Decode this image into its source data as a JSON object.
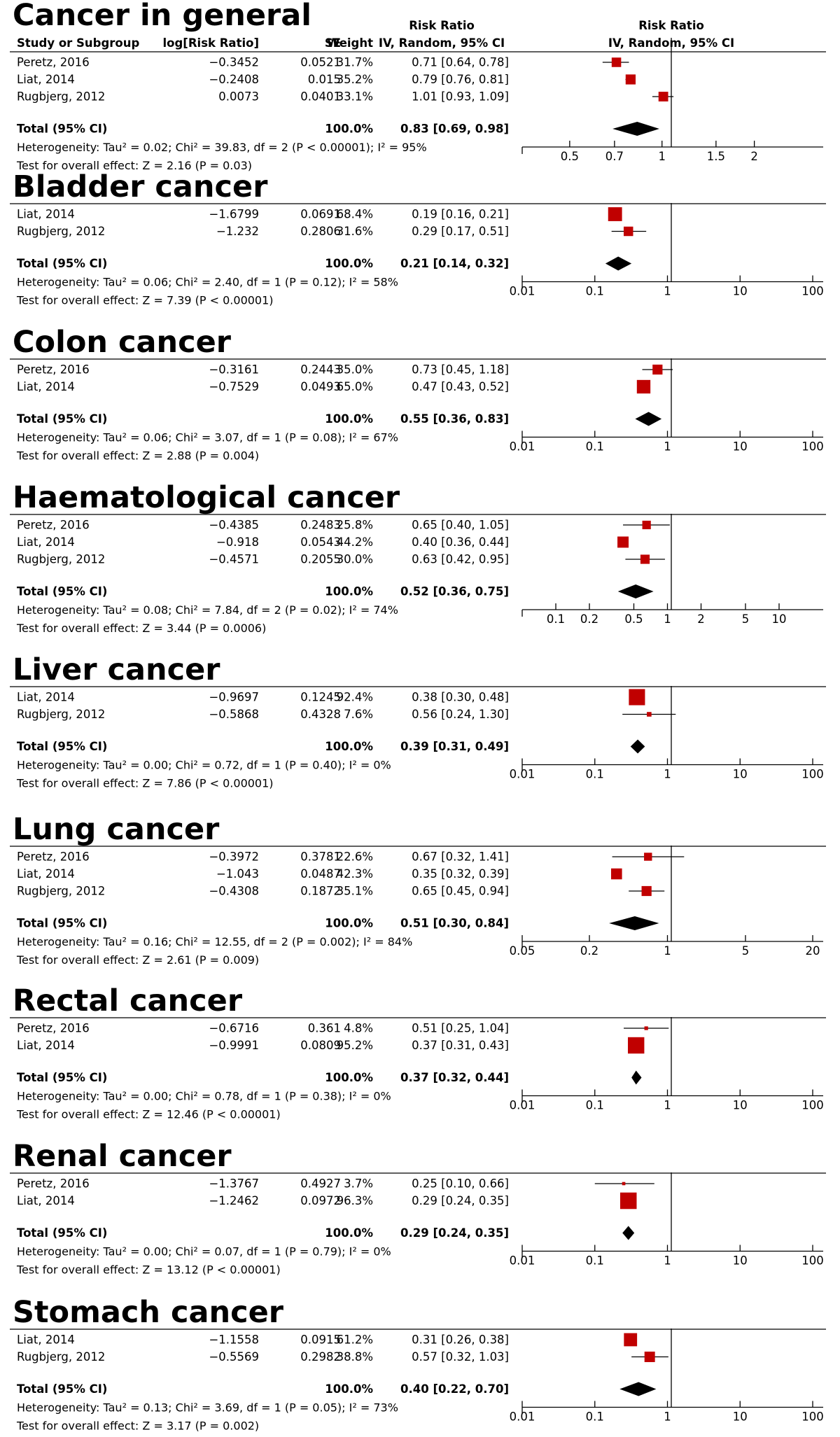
{
  "header": {
    "group1": "Risk Ratio",
    "group2": "Risk Ratio",
    "columns": [
      "Study or Subgroup",
      "log[Risk Ratio]",
      "SE",
      "Weight",
      "IV, Random, 95% CI",
      "IV, Random, 95% CI"
    ]
  },
  "colors": {
    "study_marker": "#c00000",
    "summary_diamond": "#000000",
    "axis": "#000000"
  },
  "chart_data": [
    {
      "type": "forest",
      "title": "Cancer in general",
      "scale": "log",
      "studies": [
        {
          "name": "Peretz, 2016",
          "log_rr": "−0.3452",
          "se": "0.0521",
          "weight": "31.7%",
          "ci_text": "0.71 [0.64, 0.78]",
          "rr": 0.71,
          "lo": 0.64,
          "hi": 0.78,
          "w": 31.7
        },
        {
          "name": "Liat, 2014",
          "log_rr": "−0.2408",
          "se": "0.015",
          "weight": "35.2%",
          "ci_text": "0.79 [0.76, 0.81]",
          "rr": 0.79,
          "lo": 0.76,
          "hi": 0.81,
          "w": 35.2
        },
        {
          "name": "Rugbjerg, 2012",
          "log_rr": "0.0073",
          "se": "0.0401",
          "weight": "33.1%",
          "ci_text": "1.01 [0.93, 1.09]",
          "rr": 1.01,
          "lo": 0.93,
          "hi": 1.09,
          "w": 33.1
        }
      ],
      "total": {
        "label": "Total (95% CI)",
        "weight": "100.0%",
        "ci_text": "0.83 [0.69, 0.98]",
        "rr": 0.83,
        "lo": 0.69,
        "hi": 0.98
      },
      "heterogeneity": "Heterogeneity: Tau² = 0.02; Chi² = 39.83, df = 2 (P < 0.00001); I² = 95%",
      "overall_effect": "Test for overall effect: Z = 2.16 (P = 0.03)",
      "xlim": [
        0.35,
        3.1
      ],
      "ticks": [
        0.5,
        0.7,
        1,
        1.5,
        2
      ],
      "tick_labels": [
        "0.5",
        "0.7",
        "1",
        "1.5",
        "2"
      ]
    },
    {
      "type": "forest",
      "title": "Bladder cancer",
      "scale": "log",
      "studies": [
        {
          "name": "Liat, 2014",
          "log_rr": "−1.6799",
          "se": "0.0691",
          "weight": "68.4%",
          "ci_text": "0.19 [0.16, 0.21]",
          "rr": 0.19,
          "lo": 0.16,
          "hi": 0.21,
          "w": 68.4
        },
        {
          "name": "Rugbjerg, 2012",
          "log_rr": "−1.232",
          "se": "0.2806",
          "weight": "31.6%",
          "ci_text": "0.29 [0.17, 0.51]",
          "rr": 0.29,
          "lo": 0.17,
          "hi": 0.51,
          "w": 31.6
        }
      ],
      "total": {
        "label": "Total (95% CI)",
        "weight": "100.0%",
        "ci_text": "0.21 [0.14, 0.32]",
        "rr": 0.21,
        "lo": 0.14,
        "hi": 0.32
      },
      "heterogeneity": "Heterogeneity: Tau² = 0.06; Chi² = 2.40, df = 1 (P = 0.12); I² = 58%",
      "overall_effect": "Test for overall effect: Z = 7.39 (P < 0.00001)",
      "xlim": [
        0.01,
        100
      ],
      "ticks": [
        0.01,
        0.1,
        1,
        10,
        100
      ],
      "tick_labels": [
        "0.01",
        "0.1",
        "1",
        "10",
        "100"
      ]
    },
    {
      "type": "forest",
      "title": "Colon cancer",
      "scale": "log",
      "studies": [
        {
          "name": "Peretz, 2016",
          "log_rr": "−0.3161",
          "se": "0.2443",
          "weight": "35.0%",
          "ci_text": "0.73 [0.45, 1.18]",
          "rr": 0.73,
          "lo": 0.45,
          "hi": 1.18,
          "w": 35.0
        },
        {
          "name": "Liat, 2014",
          "log_rr": "−0.7529",
          "se": "0.0493",
          "weight": "65.0%",
          "ci_text": "0.47 [0.43, 0.52]",
          "rr": 0.47,
          "lo": 0.43,
          "hi": 0.52,
          "w": 65.0
        }
      ],
      "total": {
        "label": "Total (95% CI)",
        "weight": "100.0%",
        "ci_text": "0.55 [0.36, 0.83]",
        "rr": 0.55,
        "lo": 0.36,
        "hi": 0.83
      },
      "heterogeneity": "Heterogeneity: Tau² = 0.06; Chi² = 3.07, df = 1 (P = 0.08); I² = 67%",
      "overall_effect": "Test for overall effect: Z = 2.88 (P = 0.004)",
      "xlim": [
        0.01,
        100
      ],
      "ticks": [
        0.01,
        0.1,
        1,
        10,
        100
      ],
      "tick_labels": [
        "0.01",
        "0.1",
        "1",
        "10",
        "100"
      ]
    },
    {
      "type": "forest",
      "title": "Haematological cancer",
      "scale": "log",
      "studies": [
        {
          "name": "Peretz, 2016",
          "log_rr": "−0.4385",
          "se": "0.2483",
          "weight": "25.8%",
          "ci_text": "0.65 [0.40, 1.05]",
          "rr": 0.65,
          "lo": 0.4,
          "hi": 1.05,
          "w": 25.8
        },
        {
          "name": "Liat, 2014",
          "log_rr": "−0.918",
          "se": "0.0543",
          "weight": "44.2%",
          "ci_text": "0.40 [0.36, 0.44]",
          "rr": 0.4,
          "lo": 0.36,
          "hi": 0.44,
          "w": 44.2
        },
        {
          "name": "Rugbjerg, 2012",
          "log_rr": "−0.4571",
          "se": "0.2055",
          "weight": "30.0%",
          "ci_text": "0.63 [0.42, 0.95]",
          "rr": 0.63,
          "lo": 0.42,
          "hi": 0.95,
          "w": 30.0
        }
      ],
      "total": {
        "label": "Total (95% CI)",
        "weight": "100.0%",
        "ci_text": "0.52 [0.36, 0.75]",
        "rr": 0.52,
        "lo": 0.36,
        "hi": 0.75
      },
      "heterogeneity": "Heterogeneity: Tau² = 0.08; Chi² = 7.84, df = 2 (P = 0.02); I² = 74%",
      "overall_effect": "Test for overall effect: Z = 3.44 (P = 0.0006)",
      "xlim": [
        0.05,
        20
      ],
      "ticks": [
        0.1,
        0.2,
        0.5,
        1,
        2,
        5,
        10
      ],
      "tick_labels": [
        "0.1",
        "0.2",
        "0.5",
        "1",
        "2",
        "5",
        "10"
      ]
    },
    {
      "type": "forest",
      "title": "Liver cancer",
      "scale": "log",
      "studies": [
        {
          "name": "Liat, 2014",
          "log_rr": "−0.9697",
          "se": "0.1245",
          "weight": "92.4%",
          "ci_text": "0.38 [0.30, 0.48]",
          "rr": 0.38,
          "lo": 0.3,
          "hi": 0.48,
          "w": 92.4
        },
        {
          "name": "Rugbjerg, 2012",
          "log_rr": "−0.5868",
          "se": "0.4328",
          "weight": "7.6%",
          "ci_text": "0.56 [0.24, 1.30]",
          "rr": 0.56,
          "lo": 0.24,
          "hi": 1.3,
          "w": 7.6
        }
      ],
      "total": {
        "label": "Total (95% CI)",
        "weight": "100.0%",
        "ci_text": "0.39 [0.31, 0.49]",
        "rr": 0.39,
        "lo": 0.31,
        "hi": 0.49
      },
      "heterogeneity": "Heterogeneity: Tau² = 0.00; Chi² = 0.72, df = 1 (P = 0.40); I² = 0%",
      "overall_effect": "Test for overall effect: Z = 7.86 (P < 0.00001)",
      "xlim": [
        0.01,
        100
      ],
      "ticks": [
        0.01,
        0.1,
        1,
        10,
        100
      ],
      "tick_labels": [
        "0.01",
        "0.1",
        "1",
        "10",
        "100"
      ]
    },
    {
      "type": "forest",
      "title": "Lung cancer",
      "scale": "log",
      "studies": [
        {
          "name": "Peretz, 2016",
          "log_rr": "−0.3972",
          "se": "0.3781",
          "weight": "22.6%",
          "ci_text": "0.67 [0.32, 1.41]",
          "rr": 0.67,
          "lo": 0.32,
          "hi": 1.41,
          "w": 22.6
        },
        {
          "name": "Liat, 2014",
          "log_rr": "−1.043",
          "se": "0.0487",
          "weight": "42.3%",
          "ci_text": "0.35 [0.32, 0.39]",
          "rr": 0.35,
          "lo": 0.32,
          "hi": 0.39,
          "w": 42.3
        },
        {
          "name": "Rugbjerg, 2012",
          "log_rr": "−0.4308",
          "se": "0.1872",
          "weight": "35.1%",
          "ci_text": "0.65 [0.45, 0.94]",
          "rr": 0.65,
          "lo": 0.45,
          "hi": 0.94,
          "w": 35.1
        }
      ],
      "total": {
        "label": "Total (95% CI)",
        "weight": "100.0%",
        "ci_text": "0.51 [0.30, 0.84]",
        "rr": 0.51,
        "lo": 0.3,
        "hi": 0.84
      },
      "heterogeneity": "Heterogeneity: Tau² = 0.16; Chi² = 12.55, df = 2 (P = 0.002); I² = 84%",
      "overall_effect": "Test for overall effect: Z = 2.61 (P = 0.009)",
      "xlim": [
        0.05,
        20
      ],
      "ticks": [
        0.05,
        0.2,
        1,
        5,
        20
      ],
      "tick_labels": [
        "0.05",
        "0.2",
        "1",
        "5",
        "20"
      ]
    },
    {
      "type": "forest",
      "title": "Rectal cancer",
      "scale": "log",
      "studies": [
        {
          "name": "Peretz, 2016",
          "log_rr": "−0.6716",
          "se": "0.361",
          "weight": "4.8%",
          "ci_text": "0.51 [0.25, 1.04]",
          "rr": 0.51,
          "lo": 0.25,
          "hi": 1.04,
          "w": 4.8
        },
        {
          "name": "Liat, 2014",
          "log_rr": "−0.9991",
          "se": "0.0809",
          "weight": "95.2%",
          "ci_text": "0.37 [0.31, 0.43]",
          "rr": 0.37,
          "lo": 0.31,
          "hi": 0.43,
          "w": 95.2
        }
      ],
      "total": {
        "label": "Total (95% CI)",
        "weight": "100.0%",
        "ci_text": "0.37 [0.32, 0.44]",
        "rr": 0.37,
        "lo": 0.32,
        "hi": 0.44
      },
      "heterogeneity": "Heterogeneity: Tau² = 0.00; Chi² = 0.78, df = 1 (P = 0.38); I² = 0%",
      "overall_effect": "Test for overall effect: Z = 12.46 (P < 0.00001)",
      "xlim": [
        0.01,
        100
      ],
      "ticks": [
        0.01,
        0.1,
        1,
        10,
        100
      ],
      "tick_labels": [
        "0.01",
        "0.1",
        "1",
        "10",
        "100"
      ]
    },
    {
      "type": "forest",
      "title": "Renal cancer",
      "scale": "log",
      "studies": [
        {
          "name": "Peretz, 2016",
          "log_rr": "−1.3767",
          "se": "0.4927",
          "weight": "3.7%",
          "ci_text": "0.25 [0.10, 0.66]",
          "rr": 0.25,
          "lo": 0.1,
          "hi": 0.66,
          "w": 3.7
        },
        {
          "name": "Liat, 2014",
          "log_rr": "−1.2462",
          "se": "0.0972",
          "weight": "96.3%",
          "ci_text": "0.29 [0.24, 0.35]",
          "rr": 0.29,
          "lo": 0.24,
          "hi": 0.35,
          "w": 96.3
        }
      ],
      "total": {
        "label": "Total (95% CI)",
        "weight": "100.0%",
        "ci_text": "0.29 [0.24, 0.35]",
        "rr": 0.29,
        "lo": 0.24,
        "hi": 0.35
      },
      "heterogeneity": "Heterogeneity: Tau² = 0.00; Chi² = 0.07, df = 1 (P = 0.79); I² = 0%",
      "overall_effect": "Test for overall effect: Z = 13.12 (P < 0.00001)",
      "xlim": [
        0.01,
        100
      ],
      "ticks": [
        0.01,
        0.1,
        1,
        10,
        100
      ],
      "tick_labels": [
        "0.01",
        "0.1",
        "1",
        "10",
        "100"
      ]
    },
    {
      "type": "forest",
      "title": "Stomach cancer",
      "scale": "log",
      "studies": [
        {
          "name": "Liat, 2014",
          "log_rr": "−1.1558",
          "se": "0.0915",
          "weight": "61.2%",
          "ci_text": "0.31 [0.26, 0.38]",
          "rr": 0.31,
          "lo": 0.26,
          "hi": 0.38,
          "w": 61.2
        },
        {
          "name": "Rugbjerg, 2012",
          "log_rr": "−0.5569",
          "se": "0.2982",
          "weight": "38.8%",
          "ci_text": "0.57 [0.32, 1.03]",
          "rr": 0.57,
          "lo": 0.32,
          "hi": 1.03,
          "w": 38.8
        }
      ],
      "total": {
        "label": "Total (95% CI)",
        "weight": "100.0%",
        "ci_text": "0.40 [0.22, 0.70]",
        "rr": 0.4,
        "lo": 0.22,
        "hi": 0.7
      },
      "heterogeneity": "Heterogeneity: Tau² = 0.13; Chi² = 3.69, df = 1 (P = 0.05); I² = 73%",
      "overall_effect": "Test for overall effect: Z = 3.17 (P = 0.002)",
      "xlim": [
        0.01,
        100
      ],
      "ticks": [
        0.01,
        0.1,
        1,
        10,
        100
      ],
      "tick_labels": [
        "0.01",
        "0.1",
        "1",
        "10",
        "100"
      ]
    }
  ]
}
